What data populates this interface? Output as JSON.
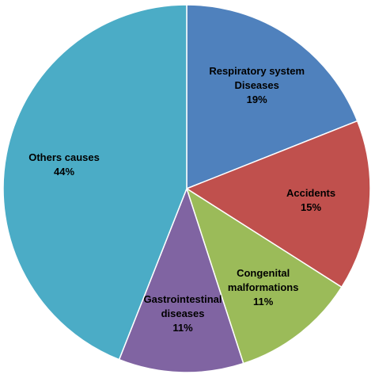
{
  "chart_data": {
    "type": "pie",
    "categories": [
      "Respiratory system Diseases",
      "Accidents",
      "Congenital malformations",
      "Gastrointestinal diseases",
      "Others causes"
    ],
    "values": [
      19,
      15,
      11,
      11,
      44
    ],
    "value_labels": [
      "19%",
      "15%",
      "11%",
      "11%",
      "44%"
    ],
    "colors": [
      "#4f81bd",
      "#c0504d",
      "#9bbb59",
      "#8064a2",
      "#4bacc6"
    ]
  }
}
